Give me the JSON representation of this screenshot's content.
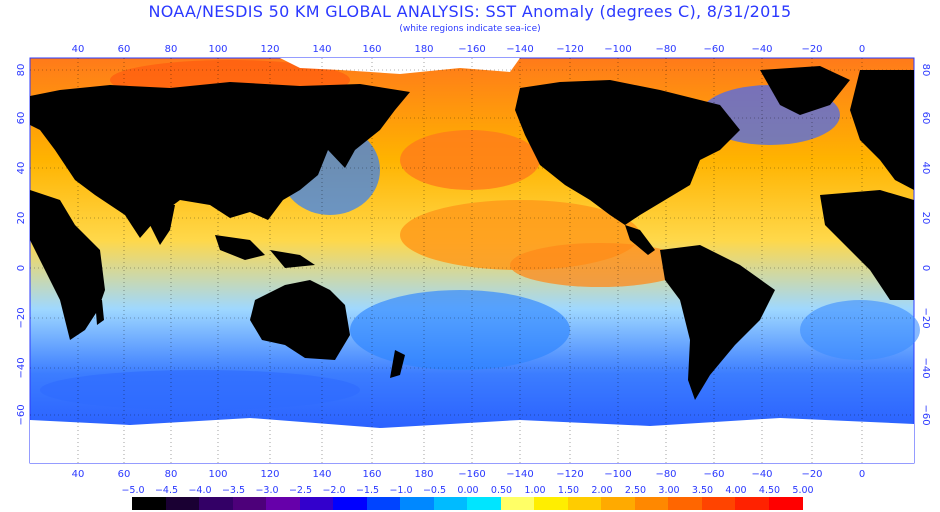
{
  "header": {
    "title": "NOAA/NESDIS 50 KM GLOBAL ANALYSIS: SST Anomaly (degrees C), 8/31/2015",
    "subtitle": "(white regions indicate sea-ice)"
  },
  "axes": {
    "lon_top": [
      "40",
      "60",
      "80",
      "100",
      "120",
      "140",
      "160",
      "180",
      "−160",
      "−140",
      "−120",
      "−100",
      "−80",
      "−60",
      "−40",
      "−20",
      "0"
    ],
    "lon_bottom": [
      "40",
      "60",
      "80",
      "100",
      "120",
      "140",
      "160",
      "180",
      "−160",
      "−140",
      "−120",
      "−100",
      "−80",
      "−60",
      "−40",
      "−20",
      "0"
    ],
    "lat": [
      "80",
      "60",
      "40",
      "20",
      "0",
      "−20",
      "−40",
      "−60"
    ]
  },
  "colorbar": {
    "labels": [
      "−5.0",
      "−4.5",
      "−4.0",
      "−3.5",
      "−3.0",
      "−2.5",
      "−2.0",
      "−1.5",
      "−1.0",
      "−0.5",
      "0.00",
      "0.50",
      "1.00",
      "1.50",
      "2.00",
      "2.50",
      "3.00",
      "3.50",
      "4.00",
      "4.50",
      "5.00"
    ],
    "colors": [
      "#000000",
      "#1a0033",
      "#330066",
      "#4d007a",
      "#6600aa",
      "#3300cc",
      "#0000ff",
      "#0044ff",
      "#0088ff",
      "#00bbff",
      "#00e5ff",
      "#ffff66",
      "#ffee00",
      "#ffcc00",
      "#ffaa00",
      "#ff8800",
      "#ff6600",
      "#ff4400",
      "#ff2200",
      "#ff0000"
    ]
  },
  "legend_colors": {
    "land": "#000000",
    "sea_ice": "#ffffff",
    "warm": "#ff8c1a",
    "cool": "#3fa0ff"
  }
}
